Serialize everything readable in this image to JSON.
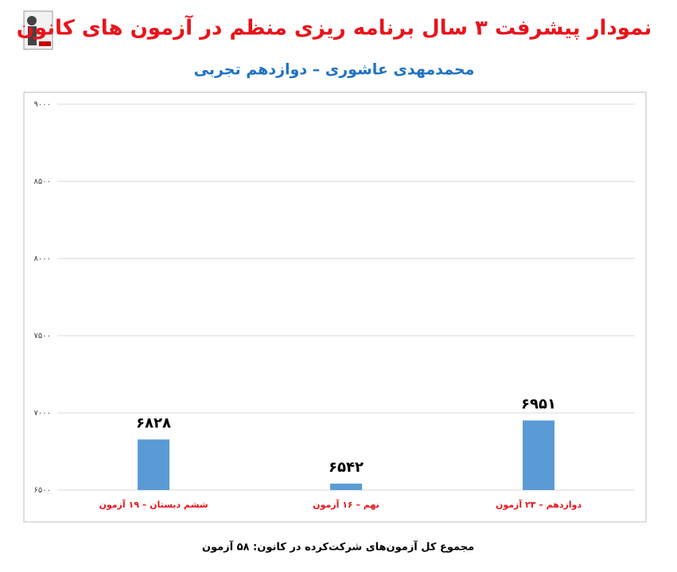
{
  "chart_data": {
    "type": "bar",
    "title": "نمودار پیشرفت ۳ سال برنامه ریزی منظم در آزمون های کانون",
    "subtitle": "محمدمهدی عاشوری – دوازدهم تجربی",
    "footer": "مجموع کل آزمون‌های شرکت‌کرده در کانون: ۵۸ آزمون",
    "categories": [
      "ششم دبستان – ۱۹ آزمون",
      "نهم – ۱۶ آزمون",
      "دوازدهم – ۲۳ آزمون"
    ],
    "values": [
      6828,
      6542,
      6951
    ],
    "value_labels": [
      "۶۸۲۸",
      "۶۵۴۲",
      "۶۹۵۱"
    ],
    "color": "#5b9bd5",
    "ylim": [
      6500,
      9000
    ],
    "yticks": [
      {
        "value": 6500,
        "label": "۶۵۰۰"
      },
      {
        "value": 7000,
        "label": "۷۰۰۰"
      },
      {
        "value": 7500,
        "label": "۷۵۰۰"
      },
      {
        "value": 8000,
        "label": "۸۰۰۰"
      },
      {
        "value": 8500,
        "label": "۸۵۰۰"
      },
      {
        "value": 9000,
        "label": "۹۰۰۰"
      }
    ],
    "grid": true
  }
}
